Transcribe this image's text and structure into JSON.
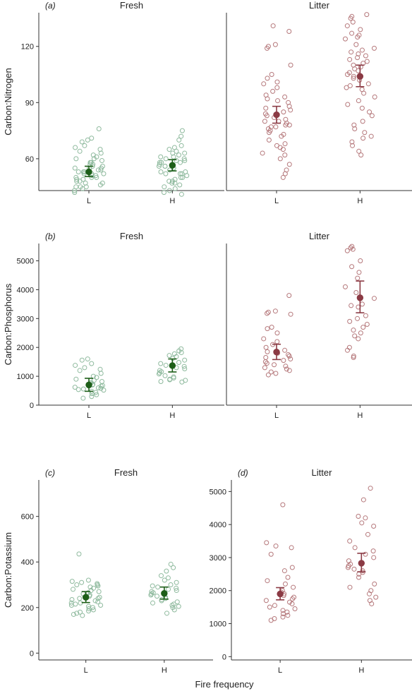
{
  "figure": {
    "xlabel": "Fire frequency",
    "fresh_color": "#8fba9e",
    "fresh_mean_color": "#1d5e18",
    "litter_color": "#b5787b",
    "litter_mean_color": "#8b3a44"
  },
  "chart_data": [
    {
      "id": "a",
      "type": "scatter",
      "panel_label": "(a)",
      "ylabel": "Carbon:Nitrogen",
      "shared_y": true,
      "ylim": [
        43,
        138
      ],
      "yticks": [
        60,
        90,
        120
      ],
      "panels": [
        {
          "title": "Fresh",
          "categories": [
            "L",
            "H"
          ],
          "points": [
            [
              76,
              70,
              69,
              71,
              66,
              67,
              65,
              64,
              63,
              62,
              61,
              60,
              60,
              59,
              58,
              57,
              57,
              56,
              56,
              55,
              55,
              54,
              54,
              53,
              53,
              52,
              52,
              51,
              51,
              50,
              50,
              49,
              48,
              48,
              47,
              46,
              45,
              44,
              43,
              42,
              58,
              55,
              53,
              52,
              50,
              49,
              47,
              45,
              45
            ],
            [
              75,
              72,
              70,
              67,
              66,
              65,
              64,
              63,
              63,
              62,
              61,
              60,
              60,
              59,
              59,
              58,
              58,
              57,
              56,
              56,
              55,
              55,
              54,
              54,
              53,
              53,
              52,
              52,
              51,
              50,
              50,
              49,
              48,
              48,
              47,
              46,
              45,
              44,
              43,
              42,
              41,
              61,
              58,
              56,
              52,
              47
            ]
          ],
          "means": [
            53.0,
            56.5
          ],
          "ci": [
            [
              50.5,
              56.0
            ],
            [
              53.5,
              59.5
            ]
          ]
        },
        {
          "title": "Litter",
          "categories": [
            "L",
            "H"
          ],
          "points": [
            [
              131,
              128,
              121,
              120,
              119,
              110,
              105,
              103,
              101,
              100,
              98,
              96,
              94,
              93,
              92,
              91,
              90,
              88,
              87,
              86,
              85,
              84,
              83,
              82,
              81,
              80,
              79,
              78,
              77,
              77,
              76,
              75,
              74,
              73,
              72,
              70,
              68,
              67,
              66,
              65,
              63,
              62,
              60,
              57,
              54,
              52,
              50,
              78,
              80
            ],
            [
              137,
              136,
              135,
              133,
              131,
              129,
              127,
              126,
              125,
              124,
              121,
              119,
              118,
              117,
              116,
              115,
              114,
              113,
              112,
              111,
              110,
              109,
              108,
              107,
              106,
              105,
              104,
              103,
              102,
              100,
              99,
              98,
              97,
              95,
              93,
              91,
              89,
              87,
              85,
              83,
              80,
              78,
              76,
              74,
              72,
              71,
              69,
              67,
              64,
              62
            ]
          ],
          "means": [
            83.5,
            104.0
          ],
          "ci": [
            [
              79.0,
              88.0
            ],
            [
              98.5,
              110.0
            ]
          ]
        }
      ]
    },
    {
      "id": "b",
      "type": "scatter",
      "panel_label": "(b)",
      "ylabel": "Carbon:Phosphorus",
      "shared_y": true,
      "ylim": [
        0,
        5600
      ],
      "yticks": [
        0,
        1000,
        2000,
        3000,
        4000,
        5000
      ],
      "panels": [
        {
          "title": "Fresh",
          "categories": [
            "L",
            "H"
          ],
          "points": [
            [
              1600,
              1560,
              1440,
              1380,
              1300,
              1240,
              1200,
              1100,
              1000,
              960,
              900,
              860,
              820,
              780,
              760,
              720,
              700,
              680,
              660,
              620,
              600,
              580,
              560,
              540,
              520,
              480,
              440,
              400,
              360,
              300,
              240
            ],
            [
              1950,
              1880,
              1820,
              1780,
              1720,
              1680,
              1620,
              1560,
              1480,
              1440,
              1380,
              1340,
              1300,
              1260,
              1200,
              1160,
              1120,
              1080,
              1020,
              980,
              940,
              900,
              880,
              860,
              820,
              800
            ]
          ],
          "means": [
            700,
            1370
          ],
          "ci": [
            [
              480,
              930
            ],
            [
              1150,
              1600
            ]
          ]
        },
        {
          "title": "Litter",
          "categories": [
            "L",
            "H"
          ],
          "points": [
            [
              3800,
              3260,
              3220,
              3180,
              3150,
              2700,
              2650,
              2500,
              2300,
              2200,
              2100,
              2000,
              1900,
              1850,
              1800,
              1750,
              1700,
              1650,
              1600,
              1550,
              1500,
              1450,
              1400,
              1350,
              1300,
              1250,
              1200,
              1150,
              1100,
              1050
            ],
            [
              5500,
              5450,
              5400,
              5350,
              5000,
              4800,
              4600,
              4400,
              4100,
              3900,
              3700,
              3500,
              3450,
              3400,
              3100,
              3000,
              2900,
              2800,
              2700,
              2600,
              2500,
              2400,
              2300,
              2000,
              1900,
              1700,
              1650
            ]
          ],
          "means": [
            1840,
            3720
          ],
          "ci": [
            [
              1580,
              2110
            ],
            [
              3200,
              4300
            ]
          ]
        }
      ]
    },
    {
      "id": "c",
      "type": "scatter",
      "panel_label": "(c)",
      "ylabel": "Carbon:Potassium",
      "shared_y": false,
      "ylim": [
        -30,
        760
      ],
      "yticks": [
        0,
        200,
        400,
        600
      ],
      "panels": [
        {
          "title": "Fresh",
          "categories": [
            "L",
            "H"
          ],
          "points": [
            [
              435,
              320,
              315,
              310,
              305,
              300,
              295,
              290,
              285,
              280,
              275,
              270,
              265,
              260,
              255,
              250,
              245,
              240,
              235,
              230,
              225,
              220,
              215,
              210,
              205,
              200,
              195,
              190,
              185,
              180,
              175,
              170,
              165,
              300,
              260,
              240,
              220,
              210
            ],
            [
              390,
              375,
              360,
              340,
              330,
              320,
              310,
              300,
              295,
              290,
              285,
              280,
              275,
              270,
              265,
              260,
              255,
              250,
              245,
              240,
              235,
              230,
              225,
              220,
              215,
              210,
              205,
              200,
              190,
              175
            ]
          ],
          "means": [
            245,
            262
          ],
          "ci": [
            [
              222,
              270
            ],
            [
              237,
              290
            ]
          ]
        }
      ]
    },
    {
      "id": "d",
      "type": "scatter",
      "panel_label": "(d)",
      "ylabel": "",
      "shared_y": false,
      "ylim": [
        -100,
        5350
      ],
      "yticks": [
        0,
        1000,
        2000,
        3000,
        4000,
        5000
      ],
      "panels": [
        {
          "title": "Litter",
          "categories": [
            "L",
            "H"
          ],
          "points": [
            [
              4600,
              3450,
              3350,
              3300,
              3100,
              2700,
              2600,
              2400,
              2300,
              2200,
              2100,
              2000,
              1950,
              1900,
              1850,
              1800,
              1750,
              1700,
              1650,
              1600,
              1550,
              1500,
              1450,
              1400,
              1350,
              1300,
              1250,
              1200,
              1150,
              1100
            ],
            [
              5100,
              4750,
              4250,
              4200,
              4050,
              3950,
              3700,
              3500,
              3300,
              3200,
              3100,
              3000,
              2900,
              2800,
              2750,
              2700,
              2650,
              2600,
              2550,
              2500,
              2400,
              2200,
              2100,
              2000,
              1900,
              1800,
              1700,
              1600
            ]
          ],
          "means": [
            1900,
            2830
          ],
          "ci": [
            [
              1720,
              2090
            ],
            [
              2570,
              3130
            ]
          ]
        }
      ]
    }
  ]
}
